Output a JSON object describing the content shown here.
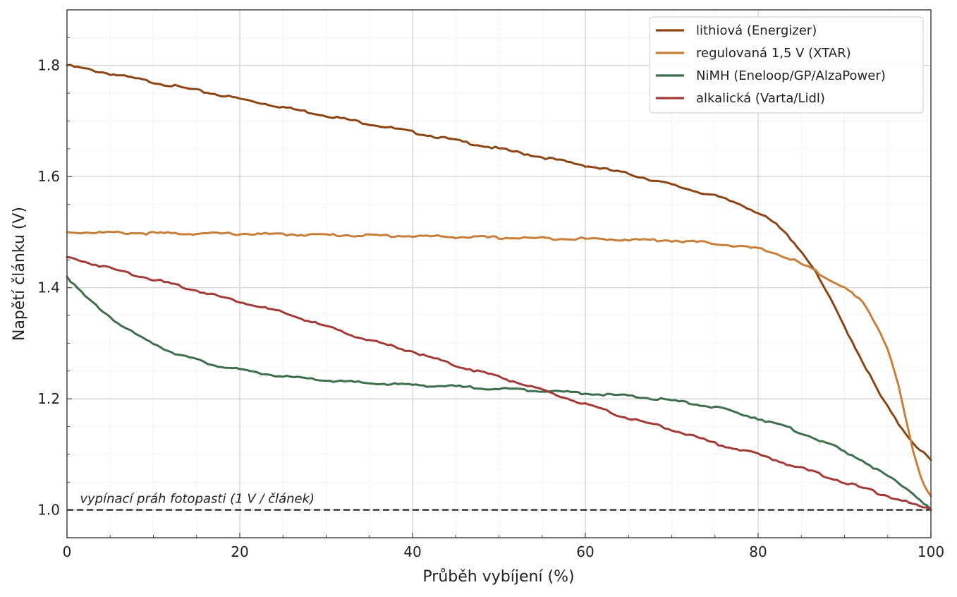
{
  "chart_data": {
    "type": "line",
    "title": "",
    "xlabel": "Průběh vybíjení (%)",
    "ylabel": "Napětí článku (V)",
    "xlim": [
      0,
      100
    ],
    "ylim": [
      0.95,
      1.9
    ],
    "xticks": [
      "0",
      "20",
      "40",
      "60",
      "80",
      "100"
    ],
    "yticks": [
      "1.0",
      "1.2",
      "1.4",
      "1.6",
      "1.8"
    ],
    "grid": true,
    "legend_position": "top-right",
    "threshold": {
      "y": 1.0,
      "label": "vypínací práh fotopasti (1 V / článek)",
      "color": "#222222"
    },
    "series": [
      {
        "name": "lithiová (Energizer)",
        "color": "#8B4513",
        "x": [
          0,
          5,
          10,
          15,
          20,
          25,
          30,
          35,
          40,
          45,
          50,
          55,
          60,
          65,
          70,
          75,
          78,
          80,
          82,
          84,
          86,
          88,
          90,
          92,
          94,
          96,
          98,
          100
        ],
        "y": [
          1.8,
          1.785,
          1.77,
          1.755,
          1.74,
          1.725,
          1.71,
          1.695,
          1.68,
          1.665,
          1.65,
          1.635,
          1.62,
          1.605,
          1.585,
          1.565,
          1.55,
          1.535,
          1.515,
          1.485,
          1.445,
          1.39,
          1.33,
          1.27,
          1.21,
          1.16,
          1.12,
          1.09
        ]
      },
      {
        "name": "regulovaná 1,5 V (XTAR)",
        "color": "#C87F3A",
        "x": [
          0,
          10,
          20,
          30,
          40,
          50,
          60,
          70,
          75,
          80,
          82,
          84,
          86,
          88,
          90,
          92,
          93,
          94,
          95,
          96,
          97,
          98,
          99,
          100
        ],
        "y": [
          1.5,
          1.498,
          1.497,
          1.495,
          1.493,
          1.49,
          1.488,
          1.485,
          1.48,
          1.47,
          1.462,
          1.45,
          1.435,
          1.418,
          1.4,
          1.375,
          1.35,
          1.325,
          1.29,
          1.24,
          1.17,
          1.1,
          1.05,
          1.025
        ]
      },
      {
        "name": "NiMH (Eneloop/GP/AlzaPower)",
        "color": "#3F6E4C",
        "x": [
          0,
          2,
          4,
          6,
          8,
          10,
          12,
          14,
          16,
          18,
          20,
          25,
          30,
          35,
          40,
          45,
          50,
          55,
          60,
          65,
          70,
          75,
          80,
          84,
          88,
          92,
          96,
          98,
          100
        ],
        "y": [
          1.42,
          1.385,
          1.36,
          1.335,
          1.315,
          1.3,
          1.285,
          1.275,
          1.265,
          1.258,
          1.252,
          1.24,
          1.233,
          1.228,
          1.225,
          1.222,
          1.218,
          1.215,
          1.21,
          1.205,
          1.197,
          1.185,
          1.165,
          1.145,
          1.12,
          1.09,
          1.05,
          1.03,
          1.0
        ]
      },
      {
        "name": "alkalická (Varta/Lidl)",
        "color": "#A23B37",
        "x": [
          0,
          5,
          10,
          15,
          20,
          25,
          30,
          35,
          40,
          45,
          50,
          55,
          60,
          65,
          70,
          75,
          80,
          85,
          90,
          95,
          100
        ],
        "y": [
          1.455,
          1.435,
          1.415,
          1.395,
          1.375,
          1.355,
          1.33,
          1.305,
          1.285,
          1.26,
          1.24,
          1.215,
          1.19,
          1.165,
          1.145,
          1.12,
          1.1,
          1.075,
          1.05,
          1.025,
          1.0
        ]
      }
    ]
  }
}
